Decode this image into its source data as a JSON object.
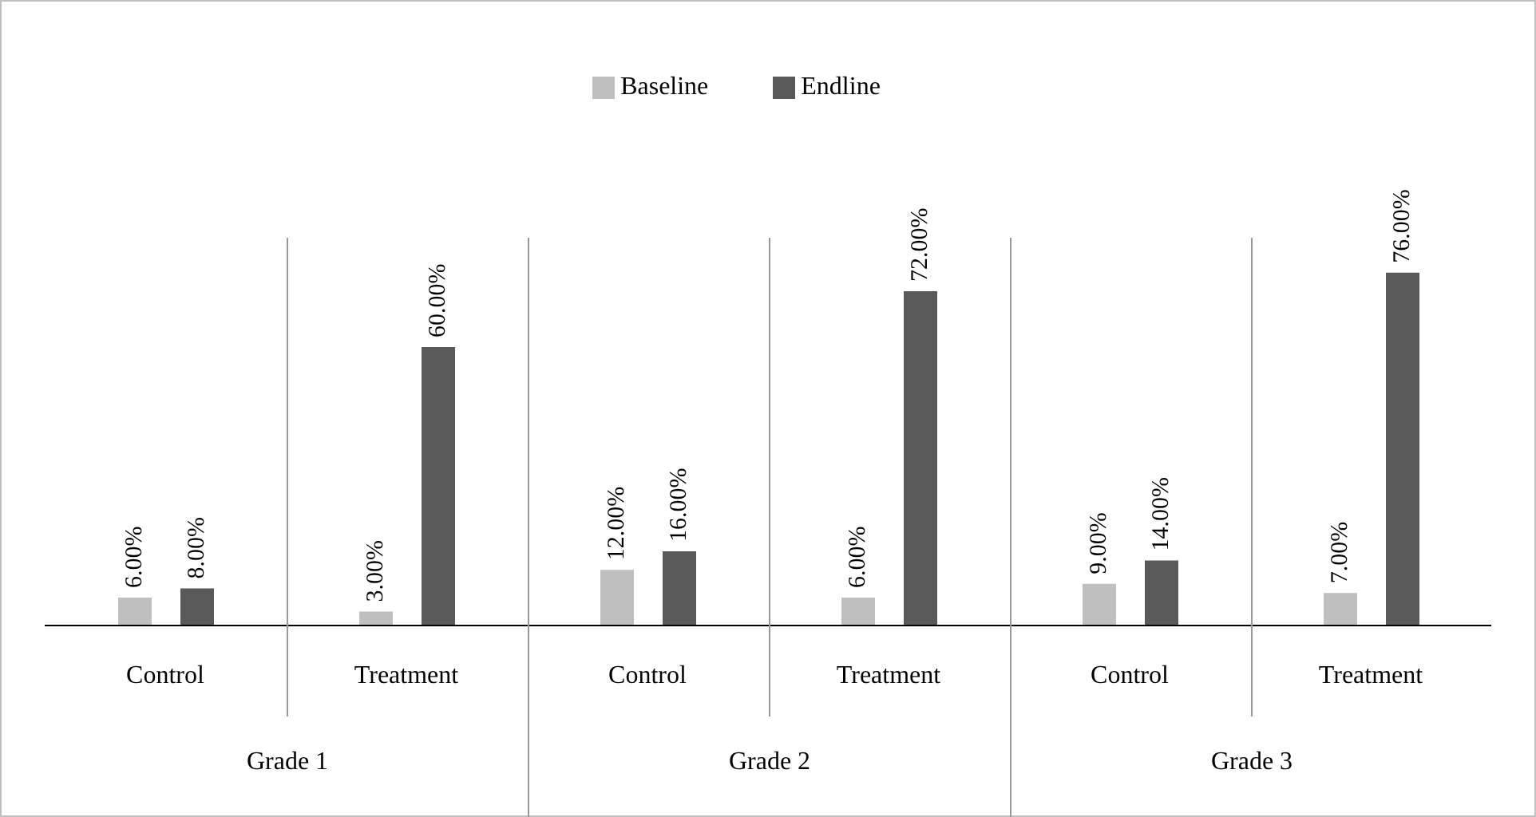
{
  "chart_data": {
    "type": "bar",
    "categories": [
      "Control",
      "Treatment",
      "Control",
      "Treatment",
      "Control",
      "Treatment"
    ],
    "series": [
      {
        "name": "Baseline",
        "color": "#bfbfbf",
        "values": [
          6,
          3,
          12,
          6,
          9,
          7
        ],
        "value_labels": [
          "6.00%",
          "3.00%",
          "12.00%",
          "6.00%",
          "9.00%",
          "7.00%"
        ]
      },
      {
        "name": "Endline",
        "color": "#595959",
        "values": [
          8,
          60,
          16,
          72,
          14,
          76
        ],
        "value_labels": [
          "8.00%",
          "60.00%",
          "16.00%",
          "72.00%",
          "14.00%",
          "76.00%"
        ]
      }
    ],
    "annotations": [
      "Grade 1",
      "Grade 2",
      "Grade 3"
    ],
    "legend": "top",
    "tick_labels": "x"
  }
}
